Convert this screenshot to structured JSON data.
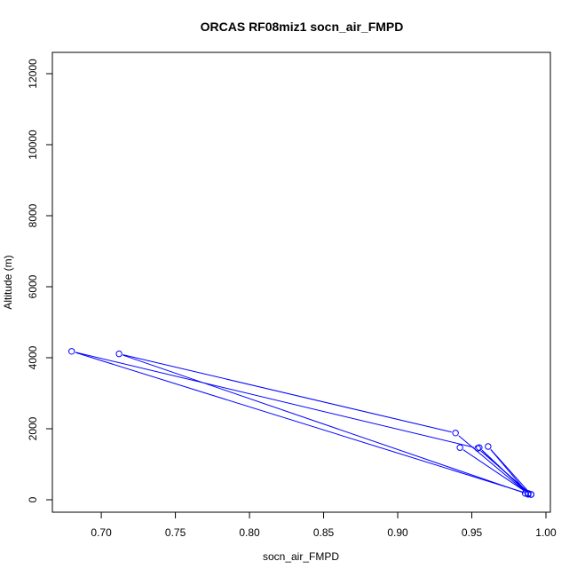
{
  "chart_data": {
    "type": "line",
    "title": "ORCAS RF08miz1 socn_air_FMPD",
    "xlabel": "socn_air_FMPD",
    "ylabel": "Altitude (m)",
    "xlim": [
      0.667,
      1.003
    ],
    "ylim": [
      -350,
      12600
    ],
    "xticks": [
      0.7,
      0.75,
      0.8,
      0.85,
      0.9,
      0.95,
      1.0
    ],
    "xtick_labels": [
      "0.70",
      "0.75",
      "0.80",
      "0.85",
      "0.90",
      "0.95",
      "1.00"
    ],
    "yticks": [
      0,
      2000,
      4000,
      6000,
      8000,
      10000,
      12000
    ],
    "ytick_labels": [
      "0",
      "2000",
      "4000",
      "6000",
      "8000",
      "10000",
      "12000"
    ],
    "grid": false,
    "legend": "none",
    "series": [
      {
        "color": "#0000ff",
        "points": [
          {
            "x": 0.942,
            "y": 1470
          },
          {
            "x": 0.988,
            "y": 180
          },
          {
            "x": 0.955,
            "y": 1470
          },
          {
            "x": 0.988,
            "y": 165
          },
          {
            "x": 0.961,
            "y": 1500
          },
          {
            "x": 0.99,
            "y": 150
          },
          {
            "x": 0.988,
            "y": 160
          },
          {
            "x": 0.939,
            "y": 1880
          },
          {
            "x": 0.712,
            "y": 4110
          },
          {
            "x": 0.988,
            "y": 155
          },
          {
            "x": 0.99,
            "y": 150
          },
          {
            "x": 0.954,
            "y": 1450
          },
          {
            "x": 0.68,
            "y": 4180
          },
          {
            "x": 0.988,
            "y": 170
          },
          {
            "x": 0.986,
            "y": 180
          }
        ]
      }
    ]
  }
}
